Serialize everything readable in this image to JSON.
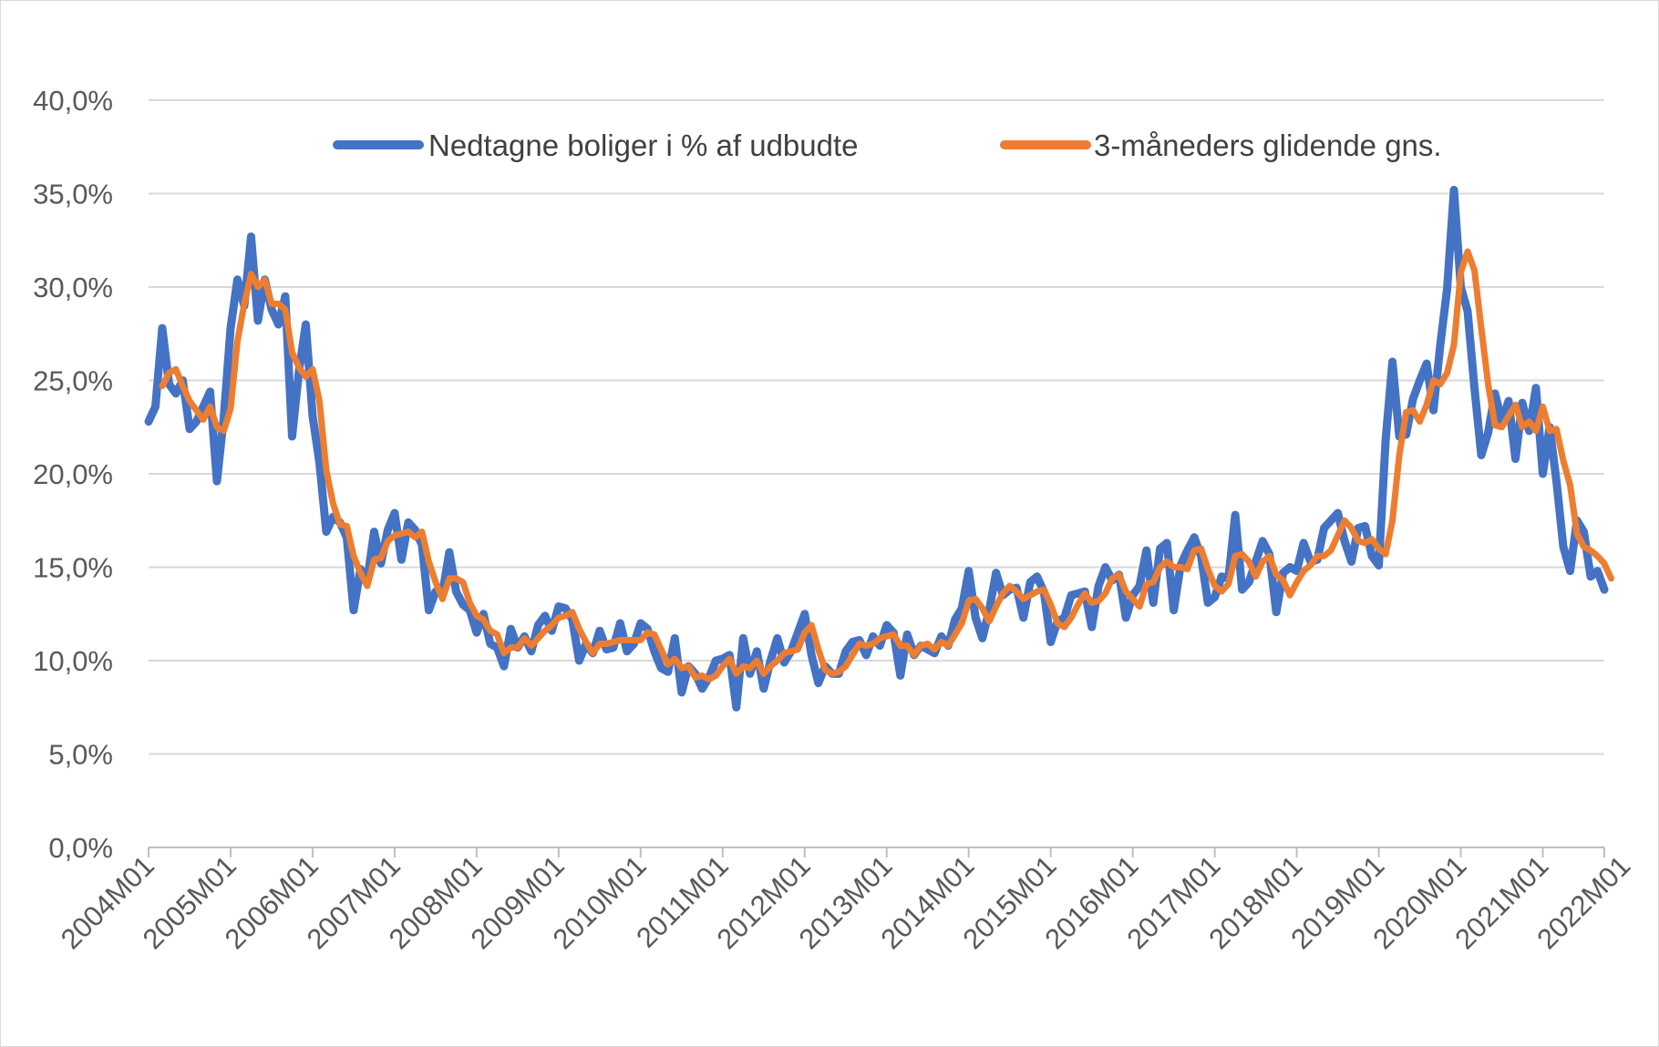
{
  "chart_data": {
    "type": "line",
    "title": "",
    "xlabel": "",
    "ylabel": "",
    "ylim": [
      0,
      40
    ],
    "y_ticks": [
      "0,0%",
      "5,0%",
      "10,0%",
      "15,0%",
      "20,0%",
      "25,0%",
      "30,0%",
      "35,0%",
      "40,0%"
    ],
    "y_tick_values": [
      0,
      5,
      10,
      15,
      20,
      25,
      30,
      35,
      40
    ],
    "x_tick_labels": [
      "2004M01",
      "2005M01",
      "2006M01",
      "2007M01",
      "2008M01",
      "2009M01",
      "2010M01",
      "2011M01",
      "2012M01",
      "2013M01",
      "2014M01",
      "2015M01",
      "2016M01",
      "2017M01",
      "2018M01",
      "2019M01",
      "2020M01",
      "2021M01",
      "2022M01"
    ],
    "x_start": "2004M01",
    "x_end": "2022M12",
    "grid": true,
    "legend_position": "top",
    "colors": {
      "series_1": "#4472c4",
      "series_2": "#ed7d31",
      "grid": "#d9d9d9",
      "axis": "#bfbfbf",
      "text": "#595959"
    },
    "series": [
      {
        "name": "Nedtagne boliger i % af udbudte",
        "values": [
          22.8,
          23.6,
          27.8,
          24.8,
          24.3,
          25.0,
          22.4,
          22.8,
          23.6,
          24.4,
          19.6,
          23.0,
          27.8,
          30.4,
          29.0,
          32.7,
          28.2,
          30.4,
          28.8,
          28.0,
          29.5,
          22.0,
          25.5,
          28.0,
          23.1,
          20.6,
          16.9,
          17.7,
          17.4,
          16.6,
          12.7,
          14.9,
          14.3,
          16.9,
          15.2,
          17.0,
          17.9,
          15.4,
          17.4,
          17.0,
          16.2,
          12.7,
          13.7,
          13.6,
          15.8,
          13.7,
          13.0,
          12.7,
          11.5,
          12.5,
          10.9,
          10.7,
          9.7,
          11.7,
          10.7,
          11.3,
          10.5,
          11.9,
          12.4,
          11.6,
          12.9,
          12.8,
          12.2,
          10.0,
          10.9,
          10.4,
          11.6,
          10.6,
          10.7,
          12.0,
          10.5,
          10.9,
          12.0,
          11.7,
          10.5,
          9.6,
          9.4,
          11.2,
          8.3,
          9.7,
          9.3,
          8.5,
          9.1,
          10.0,
          10.1,
          10.3,
          7.5,
          11.2,
          9.3,
          10.5,
          8.5,
          10.0,
          11.2,
          9.9,
          10.5,
          11.5,
          12.5,
          10.3,
          8.8,
          9.7,
          9.3,
          9.3,
          10.5,
          11.0,
          11.1,
          10.3,
          11.3,
          10.8,
          11.9,
          11.5,
          9.2,
          11.4,
          10.3,
          10.8,
          10.6,
          10.4,
          11.3,
          10.8,
          12.2,
          12.8,
          14.8,
          12.3,
          11.2,
          12.7,
          14.7,
          13.5,
          13.8,
          13.9,
          12.3,
          14.2,
          14.5,
          13.7,
          11.0,
          12.1,
          12.3,
          13.5,
          13.6,
          13.7,
          11.8,
          14.0,
          15.0,
          14.3,
          14.6,
          12.3,
          13.5,
          14.0,
          15.9,
          13.1,
          16.0,
          16.3,
          12.7,
          15.1,
          15.9,
          16.6,
          15.6,
          13.1,
          13.4,
          14.5,
          14.4,
          17.8,
          13.8,
          14.2,
          15.3,
          16.4,
          15.7,
          12.6,
          14.7,
          15.0,
          14.8,
          16.3,
          15.3,
          15.4,
          17.1,
          17.5,
          17.9,
          16.4,
          15.3,
          17.1,
          17.2,
          15.6,
          15.1,
          21.8,
          26.0,
          22.0,
          22.1,
          24.0,
          25.0,
          25.9,
          23.4,
          26.9,
          29.9,
          35.2,
          30.0,
          28.7,
          24.6,
          21.0,
          22.2,
          24.3,
          22.8,
          23.9,
          20.8,
          23.8,
          22.3,
          24.6,
          20.0,
          22.5,
          19.6,
          16.1,
          14.8,
          17.5,
          16.9,
          14.5,
          14.8,
          13.8
        ]
      },
      {
        "name": "3-måneders glidende gns.",
        "values": [
          null,
          null,
          24.7,
          25.4,
          25.6,
          24.7,
          23.9,
          23.4,
          22.9,
          23.6,
          22.5,
          22.3,
          23.5,
          27.1,
          29.1,
          30.7,
          30.0,
          30.4,
          29.1,
          29.1,
          28.8,
          26.5,
          25.7,
          25.2,
          25.6,
          23.9,
          20.2,
          18.4,
          17.3,
          17.2,
          15.6,
          14.7,
          14.0,
          15.4,
          15.5,
          16.4,
          16.7,
          16.8,
          16.9,
          16.6,
          16.9,
          15.3,
          14.2,
          13.3,
          14.4,
          14.4,
          14.2,
          13.1,
          12.4,
          12.2,
          11.6,
          11.4,
          10.4,
          10.7,
          10.7,
          11.2,
          10.8,
          11.2,
          11.6,
          11.9,
          12.3,
          12.4,
          12.6,
          11.7,
          11.0,
          10.4,
          10.9,
          10.9,
          11.0,
          11.1,
          11.1,
          11.1,
          11.1,
          11.5,
          11.4,
          10.6,
          9.8,
          10.1,
          9.6,
          9.7,
          9.1,
          9.2,
          9.0,
          9.2,
          9.7,
          10.1,
          9.3,
          9.7,
          9.6,
          10.0,
          9.3,
          9.7,
          10.0,
          10.4,
          10.5,
          10.6,
          11.5,
          11.9,
          10.6,
          9.5,
          9.3,
          9.4,
          9.7,
          10.3,
          10.9,
          10.8,
          10.9,
          11.2,
          11.3,
          11.4,
          10.8,
          10.8,
          10.3,
          10.8,
          10.9,
          10.6,
          11.0,
          10.8,
          11.4,
          12.0,
          13.2,
          13.3,
          12.8,
          12.1,
          12.9,
          13.6,
          14.0,
          13.7,
          13.3,
          13.5,
          13.7,
          13.8,
          13.0,
          12.0,
          11.8,
          12.3,
          13.0,
          13.6,
          13.1,
          13.2,
          13.6,
          14.4,
          14.6,
          13.7,
          13.3,
          12.9,
          14.1,
          14.2,
          15.0,
          15.3,
          15.0,
          15.0,
          14.9,
          15.9,
          16.0,
          14.9,
          14.0,
          13.7,
          14.1,
          15.6,
          15.7,
          15.3,
          14.5,
          15.3,
          15.6,
          14.6,
          14.3,
          13.5,
          14.2,
          14.8,
          15.1,
          15.6,
          15.6,
          15.9,
          16.7,
          17.5,
          17.1,
          16.4,
          16.3,
          16.5,
          16.0,
          15.7,
          17.5,
          21.0,
          23.3,
          23.4,
          22.8,
          23.7,
          25.0,
          24.8,
          25.4,
          26.9,
          30.8,
          31.9,
          30.9,
          27.8,
          24.8,
          22.6,
          22.5,
          23.1,
          23.7,
          22.5,
          22.8,
          22.3,
          23.6,
          22.3,
          22.4,
          20.7,
          19.4,
          16.8,
          16.1,
          15.9,
          15.6,
          15.2,
          14.4
        ]
      }
    ]
  }
}
